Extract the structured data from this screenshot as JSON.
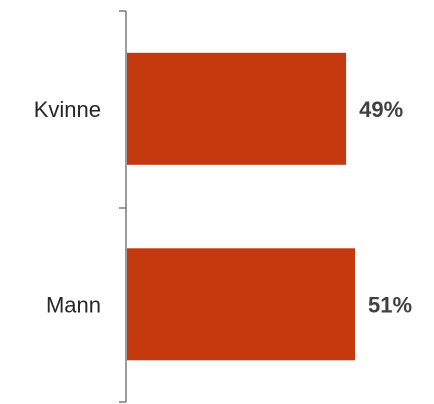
{
  "chart_data": {
    "type": "bar",
    "orientation": "horizontal",
    "categories": [
      "Kvinne",
      "Mann"
    ],
    "values": [
      49,
      51
    ],
    "value_labels": [
      "49%",
      "51%"
    ],
    "xlim": [
      0,
      51
    ],
    "grid": false,
    "legend": "none",
    "title": "",
    "xlabel": "",
    "ylabel": "",
    "colors": {
      "bar": "#C43A0E",
      "axis": "#595959"
    }
  }
}
